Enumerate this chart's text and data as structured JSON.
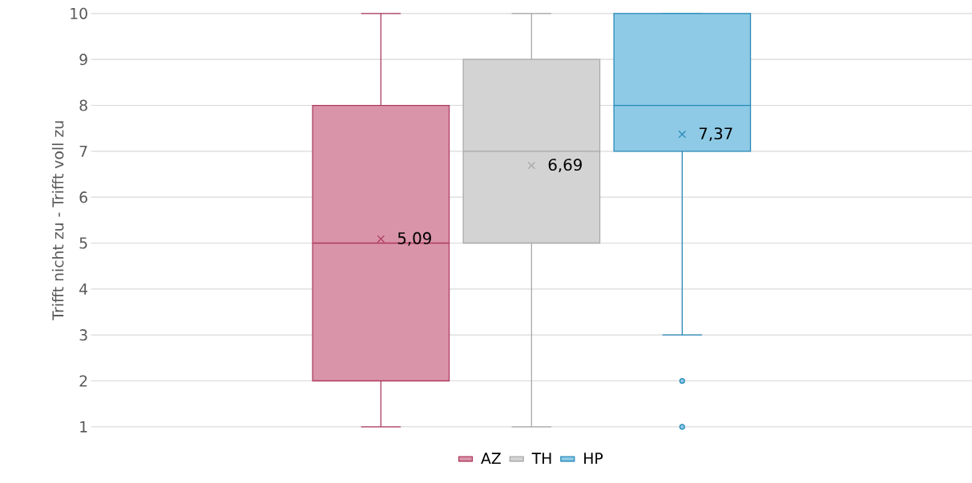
{
  "chart_data": {
    "type": "box",
    "ylabel": "Trifft nicht zu - Trifft voll zu",
    "categories": [
      null
    ],
    "ylim": [
      1,
      10
    ],
    "yticks": [
      1,
      2,
      3,
      4,
      5,
      6,
      7,
      8,
      9,
      10
    ],
    "grid": "y",
    "legend": "bottom",
    "marker": "cross",
    "series": [
      {
        "name": "AZ",
        "color": "#d994aa",
        "boxes": [
          {
            "low": 1,
            "q1": 2,
            "median": 5,
            "q3": 8,
            "high": 10,
            "mean": 5.09
          }
        ]
      },
      {
        "name": "TH",
        "color": "#d3d3d3",
        "boxes": [
          {
            "low": 1,
            "q1": 5,
            "median": 7,
            "q3": 9,
            "high": 10,
            "mean": 6.69
          }
        ]
      },
      {
        "name": "HP",
        "color": "#8ecae6",
        "boxes": [
          {
            "low": 3,
            "q1": 7,
            "median": 8,
            "q3": 10,
            "high": 10,
            "mean": 7.37,
            "outliers": [
              2,
              1
            ]
          }
        ]
      }
    ],
    "annotations": [
      "5,09",
      "6,69",
      "7,37"
    ]
  }
}
